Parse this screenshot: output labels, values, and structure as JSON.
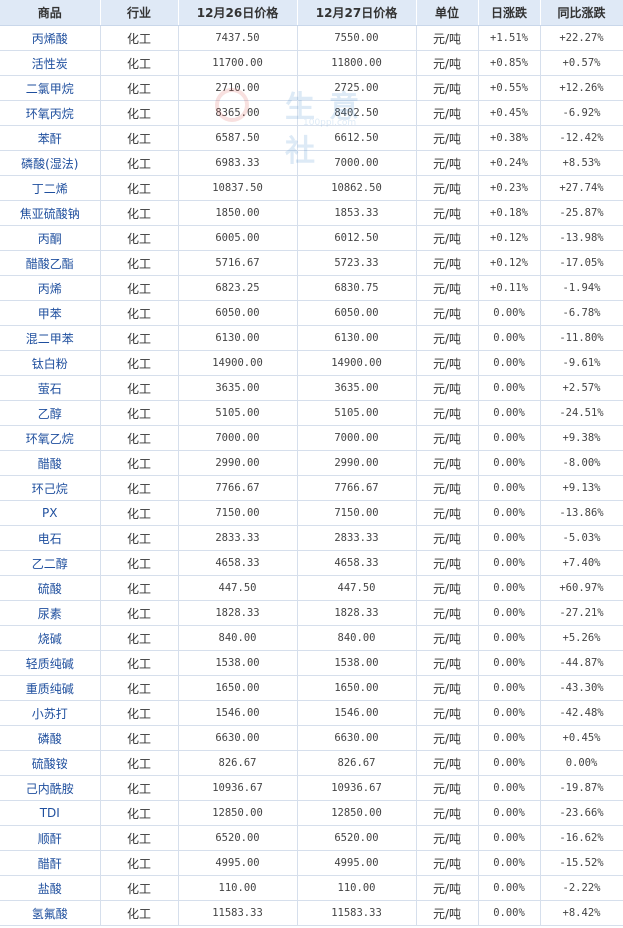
{
  "table": {
    "headers": [
      "商品",
      "行业",
      "12月26日价格",
      "12月27日价格",
      "单位",
      "日涨跌",
      "同比涨跌"
    ],
    "rows": [
      [
        "丙烯酸",
        "化工",
        "7437.50",
        "7550.00",
        "元/吨",
        "+1.51%",
        "+22.27%"
      ],
      [
        "活性炭",
        "化工",
        "11700.00",
        "11800.00",
        "元/吨",
        "+0.85%",
        "+0.57%"
      ],
      [
        "二氯甲烷",
        "化工",
        "2710.00",
        "2725.00",
        "元/吨",
        "+0.55%",
        "+12.26%"
      ],
      [
        "环氧丙烷",
        "化工",
        "8365.00",
        "8402.50",
        "元/吨",
        "+0.45%",
        "-6.92%"
      ],
      [
        "苯酐",
        "化工",
        "6587.50",
        "6612.50",
        "元/吨",
        "+0.38%",
        "-12.42%"
      ],
      [
        "磷酸(湿法)",
        "化工",
        "6983.33",
        "7000.00",
        "元/吨",
        "+0.24%",
        "+8.53%"
      ],
      [
        "丁二烯",
        "化工",
        "10837.50",
        "10862.50",
        "元/吨",
        "+0.23%",
        "+27.74%"
      ],
      [
        "焦亚硫酸钠",
        "化工",
        "1850.00",
        "1853.33",
        "元/吨",
        "+0.18%",
        "-25.87%"
      ],
      [
        "丙酮",
        "化工",
        "6005.00",
        "6012.50",
        "元/吨",
        "+0.12%",
        "-13.98%"
      ],
      [
        "醋酸乙酯",
        "化工",
        "5716.67",
        "5723.33",
        "元/吨",
        "+0.12%",
        "-17.05%"
      ],
      [
        "丙烯",
        "化工",
        "6823.25",
        "6830.75",
        "元/吨",
        "+0.11%",
        "-1.94%"
      ],
      [
        "甲苯",
        "化工",
        "6050.00",
        "6050.00",
        "元/吨",
        "0.00%",
        "-6.78%"
      ],
      [
        "混二甲苯",
        "化工",
        "6130.00",
        "6130.00",
        "元/吨",
        "0.00%",
        "-11.80%"
      ],
      [
        "钛白粉",
        "化工",
        "14900.00",
        "14900.00",
        "元/吨",
        "0.00%",
        "-9.61%"
      ],
      [
        "萤石",
        "化工",
        "3635.00",
        "3635.00",
        "元/吨",
        "0.00%",
        "+2.57%"
      ],
      [
        "乙醇",
        "化工",
        "5105.00",
        "5105.00",
        "元/吨",
        "0.00%",
        "-24.51%"
      ],
      [
        "环氧乙烷",
        "化工",
        "7000.00",
        "7000.00",
        "元/吨",
        "0.00%",
        "+9.38%"
      ],
      [
        "醋酸",
        "化工",
        "2990.00",
        "2990.00",
        "元/吨",
        "0.00%",
        "-8.00%"
      ],
      [
        "环己烷",
        "化工",
        "7766.67",
        "7766.67",
        "元/吨",
        "0.00%",
        "+9.13%"
      ],
      [
        "PX",
        "化工",
        "7150.00",
        "7150.00",
        "元/吨",
        "0.00%",
        "-13.86%"
      ],
      [
        "电石",
        "化工",
        "2833.33",
        "2833.33",
        "元/吨",
        "0.00%",
        "-5.03%"
      ],
      [
        "乙二醇",
        "化工",
        "4658.33",
        "4658.33",
        "元/吨",
        "0.00%",
        "+7.40%"
      ],
      [
        "硫酸",
        "化工",
        "447.50",
        "447.50",
        "元/吨",
        "0.00%",
        "+60.97%"
      ],
      [
        "尿素",
        "化工",
        "1828.33",
        "1828.33",
        "元/吨",
        "0.00%",
        "-27.21%"
      ],
      [
        "烧碱",
        "化工",
        "840.00",
        "840.00",
        "元/吨",
        "0.00%",
        "+5.26%"
      ],
      [
        "轻质纯碱",
        "化工",
        "1538.00",
        "1538.00",
        "元/吨",
        "0.00%",
        "-44.87%"
      ],
      [
        "重质纯碱",
        "化工",
        "1650.00",
        "1650.00",
        "元/吨",
        "0.00%",
        "-43.30%"
      ],
      [
        "小苏打",
        "化工",
        "1546.00",
        "1546.00",
        "元/吨",
        "0.00%",
        "-42.48%"
      ],
      [
        "磷酸",
        "化工",
        "6630.00",
        "6630.00",
        "元/吨",
        "0.00%",
        "+0.45%"
      ],
      [
        "硫酸铵",
        "化工",
        "826.67",
        "826.67",
        "元/吨",
        "0.00%",
        "0.00%"
      ],
      [
        "己内酰胺",
        "化工",
        "10936.67",
        "10936.67",
        "元/吨",
        "0.00%",
        "-19.87%"
      ],
      [
        "TDI",
        "化工",
        "12850.00",
        "12850.00",
        "元/吨",
        "0.00%",
        "-23.66%"
      ],
      [
        "顺酐",
        "化工",
        "6520.00",
        "6520.00",
        "元/吨",
        "0.00%",
        "-16.62%"
      ],
      [
        "醋酐",
        "化工",
        "4995.00",
        "4995.00",
        "元/吨",
        "0.00%",
        "-15.52%"
      ],
      [
        "盐酸",
        "化工",
        "110.00",
        "110.00",
        "元/吨",
        "0.00%",
        "-2.22%"
      ],
      [
        "氢氟酸",
        "化工",
        "11583.33",
        "11583.33",
        "元/吨",
        "0.00%",
        "+8.42%"
      ]
    ]
  },
  "watermark": {
    "text": "生意社",
    "url": "100ppi.com"
  },
  "colors": {
    "header_bg": "#dfe9f6",
    "grid": "#d6dfec",
    "name_link": "#1f4f9e",
    "up": "#e60012",
    "down": "#1a8c1a"
  }
}
